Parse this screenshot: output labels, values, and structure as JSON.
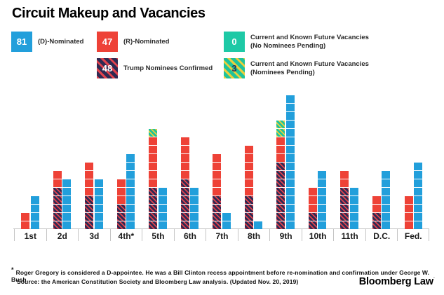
{
  "title": "Circuit Makeup and Vacancies",
  "legend": {
    "d_nominated": {
      "count": "81",
      "label": "(D)-Nominated"
    },
    "r_nominated": {
      "count": "47",
      "label": "(R)-Nominated"
    },
    "trump_confirmed": {
      "count": "48",
      "label": "Trump Nominees Confirmed"
    },
    "vac_no_nominee": {
      "count": "0",
      "label_line1": "Current and Known Future Vacancies",
      "label_line2": "(No Nominees Pending)"
    },
    "vac_pending": {
      "count": "3",
      "label_line1": "Current and Known Future Vacancies",
      "label_line2": "(Nominees Pending)"
    }
  },
  "colors": {
    "d_blue": "#229fdb",
    "r_red": "#ee4237",
    "trump_base": "#2f2a52",
    "trump_stripe": "#e2434e",
    "vacancy_teal": "#1ec9a6",
    "pending_base": "#1fc39b",
    "pending_stripe": "#eccf3b",
    "axis_line": "#c4c4c4"
  },
  "chart_data": {
    "type": "bar",
    "subtype": "stacked-unit-square-columns (1 square = 1 judgeship; paired columns: R-side and D-side)",
    "categories": [
      "1st",
      "2d",
      "3d",
      "4th*",
      "5th",
      "6th",
      "7th",
      "8th",
      "9th",
      "10th",
      "11th",
      "D.C.",
      "Fed."
    ],
    "series": [
      {
        "name": "Trump Nominees Confirmed",
        "bar": "republican",
        "stack_order": 1,
        "values": [
          0,
          5,
          4,
          3,
          5,
          6,
          4,
          4,
          8,
          2,
          5,
          2,
          0
        ],
        "total": 48
      },
      {
        "name": "(R)-Nominated",
        "bar": "republican",
        "stack_order": 2,
        "values": [
          2,
          2,
          4,
          3,
          6,
          5,
          5,
          6,
          3,
          3,
          2,
          2,
          4
        ],
        "total": 47
      },
      {
        "name": "Current and Known Future Vacancies (Nominees Pending)",
        "bar": "republican",
        "stack_order": 3,
        "values": [
          0,
          0,
          0,
          0,
          1,
          0,
          0,
          0,
          2,
          0,
          0,
          0,
          0
        ],
        "total": 3
      },
      {
        "name": "(D)-Nominated",
        "bar": "democratic",
        "stack_order": 1,
        "values": [
          4,
          6,
          6,
          9,
          5,
          5,
          2,
          1,
          16,
          7,
          5,
          7,
          8
        ],
        "total": 81
      },
      {
        "name": "Current and Known Future Vacancies (No Nominees Pending)",
        "bar": "democratic",
        "stack_order": 2,
        "values": [
          0,
          0,
          0,
          0,
          0,
          0,
          0,
          0,
          0,
          0,
          0,
          0,
          0
        ],
        "total": 0
      }
    ],
    "ylim": [
      0,
      16
    ],
    "grid": false,
    "legend_position": "top"
  },
  "footnote": {
    "star": "*",
    "line1": "Roger Gregory is considered a D-appointee. He was a Bill Clinton recess appointment before re-nomination and confirmation under George W. Bush.",
    "line2": "Source: the American Constitution Society and Bloomberg Law analysis. (Updated Nov. 20, 2019)"
  },
  "brand": "Bloomberg Law",
  "brand_mark": "·"
}
